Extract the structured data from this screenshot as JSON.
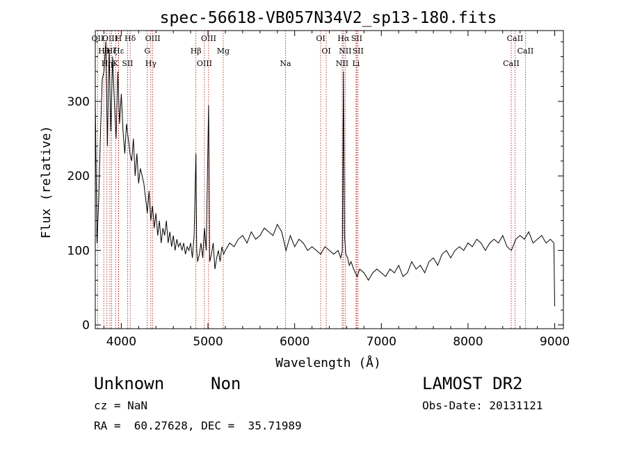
{
  "chart_data": {
    "type": "line",
    "title": "spec-56618-VB057N34V2_sp13-180.fits",
    "xlabel": "Wavelength (Å)",
    "ylabel": "Flux (relative)",
    "xlim": [
      3700,
      9100
    ],
    "ylim": [
      -5,
      395
    ],
    "xticks": [
      4000,
      5000,
      6000,
      7000,
      8000,
      9000
    ],
    "yticks": [
      0,
      100,
      200,
      300
    ],
    "grid": false,
    "series": [
      {
        "color": "#000000",
        "x": [
          3700,
          3720,
          3740,
          3760,
          3780,
          3800,
          3820,
          3840,
          3860,
          3880,
          3900,
          3920,
          3940,
          3960,
          3980,
          4000,
          4020,
          4040,
          4060,
          4080,
          4100,
          4120,
          4140,
          4160,
          4180,
          4200,
          4220,
          4240,
          4260,
          4280,
          4300,
          4320,
          4340,
          4360,
          4380,
          4400,
          4420,
          4440,
          4460,
          4480,
          4500,
          4520,
          4540,
          4560,
          4580,
          4600,
          4620,
          4640,
          4660,
          4680,
          4700,
          4720,
          4740,
          4760,
          4780,
          4800,
          4820,
          4840,
          4861,
          4870,
          4880,
          4900,
          4920,
          4940,
          4959,
          4980,
          5007,
          5020,
          5040,
          5060,
          5080,
          5100,
          5120,
          5140,
          5160,
          5180,
          5200,
          5250,
          5300,
          5350,
          5400,
          5450,
          5500,
          5550,
          5600,
          5650,
          5700,
          5750,
          5800,
          5850,
          5900,
          5950,
          6000,
          6050,
          6100,
          6150,
          6200,
          6250,
          6300,
          6350,
          6400,
          6450,
          6500,
          6530,
          6550,
          6563,
          6575,
          6590,
          6610,
          6630,
          6650,
          6680,
          6700,
          6720,
          6750,
          6800,
          6850,
          6900,
          6950,
          7000,
          7050,
          7100,
          7150,
          7200,
          7250,
          7300,
          7350,
          7400,
          7450,
          7500,
          7550,
          7600,
          7650,
          7700,
          7750,
          7800,
          7850,
          7900,
          7950,
          8000,
          8050,
          8100,
          8150,
          8200,
          8250,
          8300,
          8350,
          8400,
          8450,
          8500,
          8550,
          8600,
          8650,
          8700,
          8750,
          8800,
          8850,
          8900,
          8950,
          8990,
          9000
        ],
        "y": [
          300,
          110,
          170,
          260,
          330,
          340,
          380,
          240,
          370,
          260,
          360,
          300,
          250,
          340,
          270,
          310,
          260,
          230,
          270,
          250,
          230,
          220,
          250,
          200,
          230,
          190,
          210,
          200,
          190,
          170,
          150,
          180,
          140,
          160,
          130,
          150,
          120,
          140,
          110,
          130,
          120,
          140,
          110,
          125,
          105,
          120,
          100,
          115,
          105,
          110,
          100,
          110,
          95,
          105,
          100,
          110,
          90,
          120,
          230,
          100,
          85,
          95,
          110,
          90,
          130,
          100,
          295,
          85,
          95,
          110,
          75,
          90,
          100,
          85,
          105,
          95,
          100,
          110,
          105,
          115,
          120,
          110,
          125,
          115,
          120,
          130,
          125,
          120,
          135,
          125,
          100,
          120,
          105,
          115,
          110,
          100,
          105,
          100,
          95,
          105,
          100,
          95,
          100,
          90,
          100,
          340,
          120,
          95,
          90,
          80,
          85,
          75,
          70,
          65,
          75,
          70,
          60,
          70,
          75,
          70,
          65,
          75,
          70,
          80,
          65,
          70,
          85,
          75,
          80,
          70,
          85,
          90,
          80,
          95,
          100,
          90,
          100,
          105,
          100,
          110,
          105,
          115,
          110,
          100,
          110,
          115,
          110,
          120,
          105,
          100,
          115,
          120,
          115,
          125,
          110,
          115,
          120,
          110,
          115,
          110,
          25
        ]
      }
    ],
    "lines": [
      {
        "wave": 3727,
        "name": "OII"
      },
      {
        "wave": 3798,
        "name": "Hθ"
      },
      {
        "wave": 3835,
        "name": "Hη"
      },
      {
        "wave": 3869,
        "name": "OIII"
      },
      {
        "wave": 3889,
        "name": "Hζ"
      },
      {
        "wave": 3934,
        "name": "K"
      },
      {
        "wave": 3968,
        "name": "H"
      },
      {
        "wave": 3970,
        "name": "Hε"
      },
      {
        "wave": 4072,
        "name": "SII"
      },
      {
        "wave": 4102,
        "name": "Hδ"
      },
      {
        "wave": 4300,
        "name": "G"
      },
      {
        "wave": 4341,
        "name": "Hγ"
      },
      {
        "wave": 4363,
        "name": "OIII"
      },
      {
        "wave": 4861,
        "name": "Hβ"
      },
      {
        "wave": 4959,
        "name": "OIII"
      },
      {
        "wave": 5007,
        "name": "OIII"
      },
      {
        "wave": 5176,
        "name": "Mg"
      },
      {
        "wave": 5894,
        "name": "Na"
      },
      {
        "wave": 6300,
        "name": "OI"
      },
      {
        "wave": 6364,
        "name": "OI"
      },
      {
        "wave": 6548,
        "name": "NII"
      },
      {
        "wave": 6563,
        "name": "Hα"
      },
      {
        "wave": 6583,
        "name": "NII"
      },
      {
        "wave": 6708,
        "name": "Li"
      },
      {
        "wave": 6716,
        "name": "SII"
      },
      {
        "wave": 6731,
        "name": "SII"
      },
      {
        "wave": 8498,
        "name": "CaII"
      },
      {
        "wave": 8542,
        "name": "CaII"
      },
      {
        "wave": 8662,
        "name": "CaII"
      }
    ]
  },
  "info": {
    "class_label": "Unknown",
    "subclass_label": "Non",
    "survey": "LAMOST DR2",
    "cz": "cz = NaN",
    "obs_date": "Obs-Date: 20131121",
    "coords": "RA =  60.27628, DEC =  35.71989"
  }
}
